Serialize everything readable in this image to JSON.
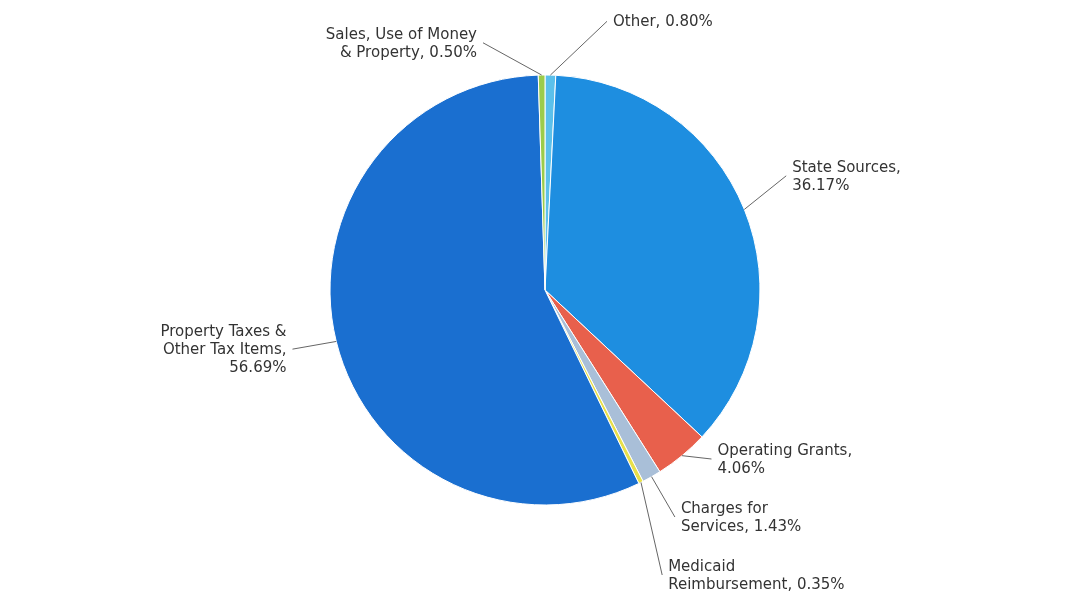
{
  "chart_data": {
    "type": "pie",
    "categories": [
      "Other",
      "State Sources",
      "Operating Grants",
      "Charges for Services",
      "Medicaid Reimbursement",
      "Property Taxes & Other Tax Items",
      "Sales, Use of Money & Property"
    ],
    "values": [
      0.8,
      36.17,
      4.06,
      1.43,
      0.35,
      56.69,
      0.5
    ],
    "colors": [
      "#5bc0eb",
      "#1e8ee0",
      "#e8604c",
      "#a9bfd8",
      "#e8e04a",
      "#1a6fd0",
      "#9ccc4a"
    ],
    "value_labels": [
      ", 0.80%",
      ", 36.17%",
      ", 4.06%",
      ", 1.43%",
      ", 0.35%",
      ", 56.69%",
      ", 0.50%"
    ]
  }
}
